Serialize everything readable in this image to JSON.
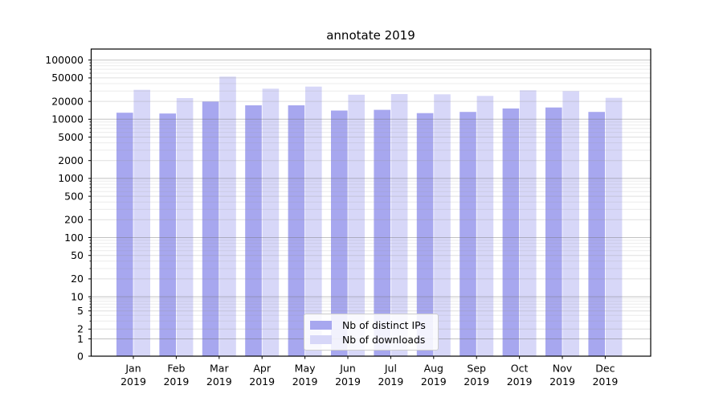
{
  "chart_data": {
    "type": "bar",
    "title": "annotate 2019",
    "x_year": "2019",
    "categories": [
      "Jan",
      "Feb",
      "Mar",
      "Apr",
      "May",
      "Jun",
      "Jul",
      "Aug",
      "Sep",
      "Oct",
      "Nov",
      "Dec"
    ],
    "series": [
      {
        "name": "Nb of distinct IPs",
        "color": "#a7a7ef",
        "values": [
          12900,
          12500,
          19900,
          17200,
          17200,
          14000,
          14400,
          12700,
          13300,
          15200,
          15800,
          13300
        ]
      },
      {
        "name": "Nb of downloads",
        "color": "#d7d7f8",
        "values": [
          31400,
          22800,
          52500,
          32800,
          35600,
          26000,
          26600,
          26400,
          24800,
          30800,
          29900,
          23000
        ]
      }
    ],
    "y_axis": {
      "scale": "symlog",
      "tick_values": [
        0,
        1,
        2,
        5,
        10,
        20,
        50,
        100,
        200,
        500,
        1000,
        2000,
        5000,
        10000,
        20000,
        50000,
        100000
      ],
      "tick_labels": [
        "0",
        "1",
        "2",
        "5",
        "10",
        "20",
        "50",
        "100",
        "200",
        "500",
        "1000",
        "2000",
        "5000",
        "10000",
        "20000",
        "50000",
        "100000"
      ],
      "ylim": [
        0,
        150000
      ]
    },
    "legend": {
      "position": "lower center",
      "entries": [
        "Nb of distinct IPs",
        "Nb of downloads"
      ]
    },
    "grid": {
      "shown": true,
      "major_color": "#c3c3c3",
      "minor_color": "#e7e7e7"
    },
    "colors": {
      "axis": "#000000",
      "text": "#000000",
      "background": "#ffffff"
    }
  }
}
